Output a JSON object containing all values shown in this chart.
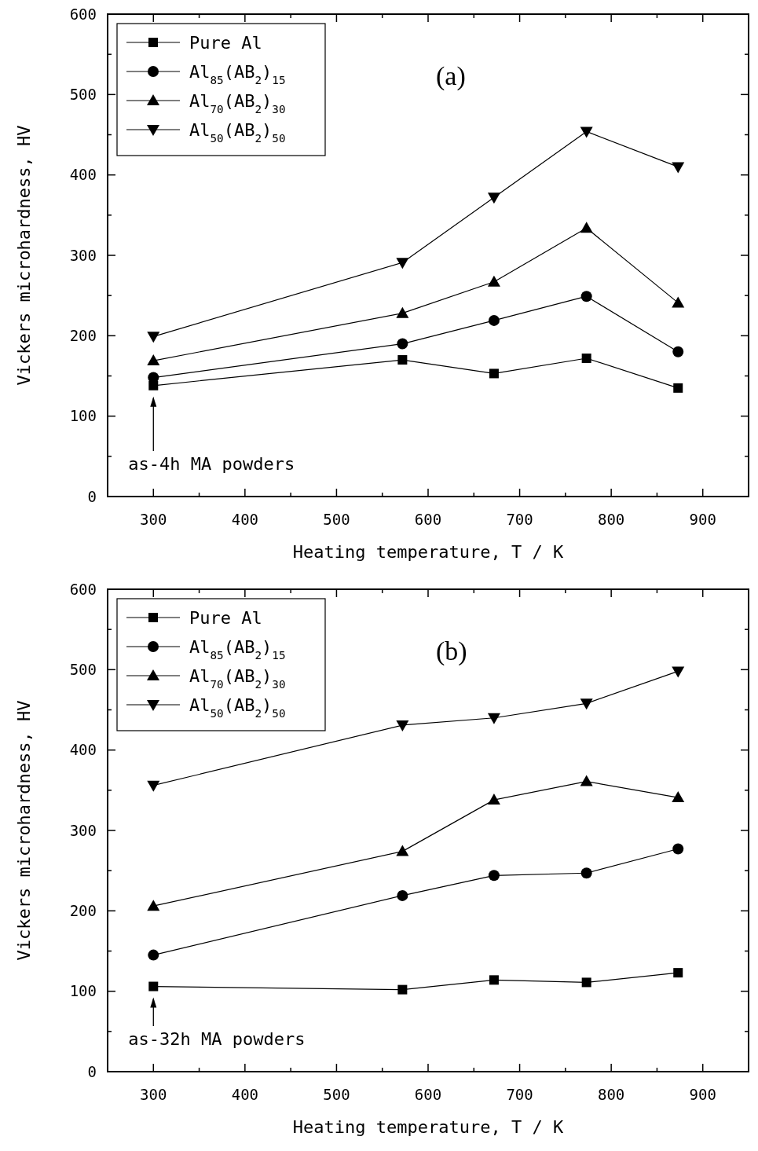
{
  "chart_data": [
    {
      "type": "line",
      "xlabel": "Heating temperature, T / K",
      "ylabel": "Vickers microhardness, HV",
      "x": [
        300,
        572,
        672,
        773,
        873
      ],
      "xlim": [
        250,
        950
      ],
      "ylim": [
        0,
        600
      ],
      "xticks": [
        300,
        {
          "value": 350,
          "label": null
        },
        400,
        {
          "value": 450,
          "label": null
        },
        500,
        {
          "value": 550,
          "label": null
        },
        600,
        {
          "value": 650,
          "label": null
        },
        700,
        {
          "value": 750,
          "label": null
        },
        800,
        {
          "value": 850,
          "label": null
        },
        900
      ],
      "yticks": [
        0,
        {
          "value": 50,
          "label": null
        },
        100,
        {
          "value": 150,
          "label": null
        },
        200,
        {
          "value": 250,
          "label": null
        },
        300,
        {
          "value": 350,
          "label": null
        },
        400,
        {
          "value": 450,
          "label": null
        },
        500,
        {
          "value": 550,
          "label": null
        },
        600
      ],
      "grid": false,
      "legend": "top left",
      "line_style": "solid",
      "series": [
        {
          "name": "Pure Al",
          "color": "#000000",
          "marker": "square",
          "values": [
            138,
            170,
            153,
            172,
            135
          ]
        },
        {
          "name": "Al$_{85}$(AB$_{2}$)$_{15}$",
          "color": "#000000",
          "marker": "circle",
          "values": [
            148,
            190,
            219,
            249,
            180
          ]
        },
        {
          "name": "Al$_{70}$(AB$_{2}$)$_{30}$",
          "color": "#000000",
          "marker": "triangle",
          "values": [
            169,
            228,
            267,
            334,
            241
          ]
        },
        {
          "name": "Al$_{50}$(AB$_{2}$)$_{50}$",
          "color": "#000000",
          "marker": "triangle-down",
          "values": [
            199,
            291,
            372,
            454,
            410
          ]
        }
      ],
      "annotations": [
        "(a)",
        "as-4h MA powders"
      ]
    },
    {
      "type": "line",
      "xlabel": "Heating temperature, T / K",
      "ylabel": "Vickers microhardness, HV",
      "x": [
        300,
        572,
        672,
        773,
        873
      ],
      "xlim": [
        250,
        950
      ],
      "ylim": [
        0,
        600
      ],
      "xticks": [
        300,
        {
          "value": 350,
          "label": null
        },
        400,
        {
          "value": 450,
          "label": null
        },
        500,
        {
          "value": 550,
          "label": null
        },
        600,
        {
          "value": 650,
          "label": null
        },
        700,
        {
          "value": 750,
          "label": null
        },
        800,
        {
          "value": 850,
          "label": null
        },
        900
      ],
      "yticks": [
        0,
        {
          "value": 50,
          "label": null
        },
        100,
        {
          "value": 150,
          "label": null
        },
        200,
        {
          "value": 250,
          "label": null
        },
        300,
        {
          "value": 350,
          "label": null
        },
        400,
        {
          "value": 450,
          "label": null
        },
        500,
        {
          "value": 550,
          "label": null
        },
        600
      ],
      "grid": false,
      "legend": "top left",
      "line_style": "solid",
      "series": [
        {
          "name": "Pure Al",
          "color": "#000000",
          "marker": "square",
          "values": [
            106,
            102,
            114,
            111,
            123
          ]
        },
        {
          "name": "Al$_{85}$(AB$_{2}$)$_{15}$",
          "color": "#000000",
          "marker": "circle",
          "values": [
            145,
            219,
            244,
            247,
            277
          ]
        },
        {
          "name": "Al$_{70}$(AB$_{2}$)$_{30}$",
          "color": "#000000",
          "marker": "triangle",
          "values": [
            206,
            274,
            338,
            361,
            341
          ]
        },
        {
          "name": "Al$_{50}$(AB$_{2}$)$_{50}$",
          "color": "#000000",
          "marker": "triangle-down",
          "values": [
            356,
            431,
            440,
            458,
            498
          ]
        }
      ],
      "annotations": [
        "(b)",
        "as-32h MA powders"
      ]
    }
  ]
}
